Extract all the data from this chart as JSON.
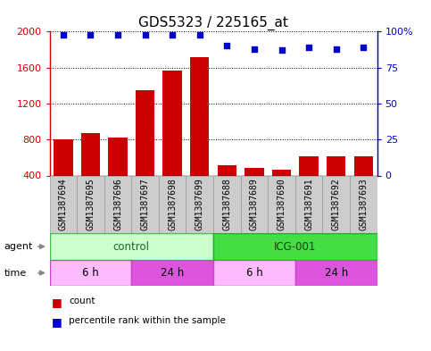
{
  "title": "GDS5323 / 225165_at",
  "samples": [
    "GSM1387694",
    "GSM1387695",
    "GSM1387696",
    "GSM1387697",
    "GSM1387698",
    "GSM1387699",
    "GSM1387688",
    "GSM1387689",
    "GSM1387690",
    "GSM1387691",
    "GSM1387692",
    "GSM1387693"
  ],
  "counts": [
    800,
    870,
    820,
    1350,
    1570,
    1720,
    510,
    480,
    460,
    610,
    610,
    610
  ],
  "percentiles": [
    98,
    98,
    98,
    98,
    98,
    98,
    90,
    88,
    87,
    89,
    88,
    89
  ],
  "bar_color": "#cc0000",
  "dot_color": "#0000cc",
  "ylim_left": [
    400,
    2000
  ],
  "ylim_right": [
    0,
    100
  ],
  "yticks_left": [
    400,
    800,
    1200,
    1600,
    2000
  ],
  "yticks_right": [
    0,
    25,
    50,
    75,
    100
  ],
  "agent_groups": [
    {
      "label": "control",
      "start": 0,
      "end": 6,
      "color": "#ccffcc",
      "border_color": "#44bb44"
    },
    {
      "label": "ICG-001",
      "start": 6,
      "end": 12,
      "color": "#44dd44",
      "border_color": "#22aa22"
    }
  ],
  "time_groups": [
    {
      "label": "6 h",
      "start": 0,
      "end": 3,
      "color": "#ffbbff",
      "border_color": "#cc44cc"
    },
    {
      "label": "24 h",
      "start": 3,
      "end": 6,
      "color": "#dd55dd",
      "border_color": "#cc44cc"
    },
    {
      "label": "6 h",
      "start": 6,
      "end": 9,
      "color": "#ffbbff",
      "border_color": "#cc44cc"
    },
    {
      "label": "24 h",
      "start": 9,
      "end": 12,
      "color": "#dd55dd",
      "border_color": "#cc44cc"
    }
  ],
  "legend_count_color": "#cc0000",
  "legend_dot_color": "#0000cc",
  "background_color": "#ffffff",
  "title_fontsize": 11,
  "tick_fontsize": 8,
  "label_fontsize": 8,
  "sample_label_fontsize": 7,
  "gray_box_color": "#cccccc",
  "gray_box_edge": "#999999"
}
